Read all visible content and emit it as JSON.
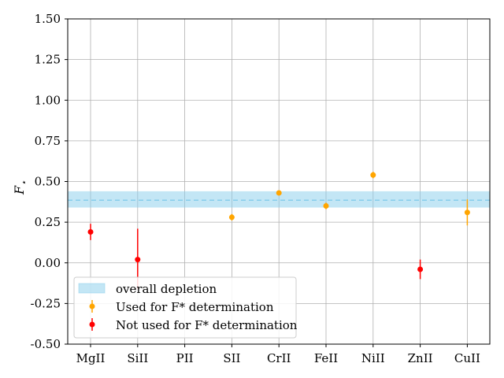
{
  "chart_data": {
    "type": "scatter",
    "title": "",
    "xlabel": "",
    "ylabel": "F",
    "ylabel_subscript": "⋆",
    "categories": [
      "MgII",
      "SiII",
      "PII",
      "SII",
      "CrII",
      "FeII",
      "NiII",
      "ZnII",
      "CuII"
    ],
    "ylim": [
      -0.5,
      1.5
    ],
    "yticks": [
      "-0.50",
      "-0.25",
      "0.00",
      "0.25",
      "0.50",
      "0.75",
      "1.00",
      "1.25",
      "1.50"
    ],
    "ytick_values": [
      -0.5,
      -0.25,
      0.0,
      0.25,
      0.5,
      0.75,
      1.0,
      1.25,
      1.5
    ],
    "grid": true,
    "legend_position": "lower-left",
    "overall_depletion": {
      "name": "overall depletion",
      "center": 0.385,
      "low": 0.34,
      "high": 0.44,
      "color": "#87ceeb",
      "line_color": "#87ceeb"
    },
    "series": [
      {
        "name": "Used for F* determination",
        "color": "#ffa500",
        "points": [
          {
            "category": "SII",
            "y": 0.28,
            "err_low": 0.02,
            "err_high": 0.02
          },
          {
            "category": "CrII",
            "y": 0.43,
            "err_low": 0.01,
            "err_high": 0.01
          },
          {
            "category": "FeII",
            "y": 0.35,
            "err_low": 0.02,
            "err_high": 0.02
          },
          {
            "category": "NiII",
            "y": 0.54,
            "err_low": 0.02,
            "err_high": 0.02
          },
          {
            "category": "CuII",
            "y": 0.31,
            "err_low": 0.08,
            "err_high": 0.08
          }
        ]
      },
      {
        "name": "Not used for F* determination",
        "color": "#ff0000",
        "points": [
          {
            "category": "MgII",
            "y": 0.19,
            "err_low": 0.05,
            "err_high": 0.05
          },
          {
            "category": "SiII",
            "y": 0.02,
            "err_low": 0.18,
            "err_high": 0.19
          },
          {
            "category": "ZnII",
            "y": -0.04,
            "err_low": 0.06,
            "err_high": 0.06
          }
        ]
      }
    ]
  }
}
